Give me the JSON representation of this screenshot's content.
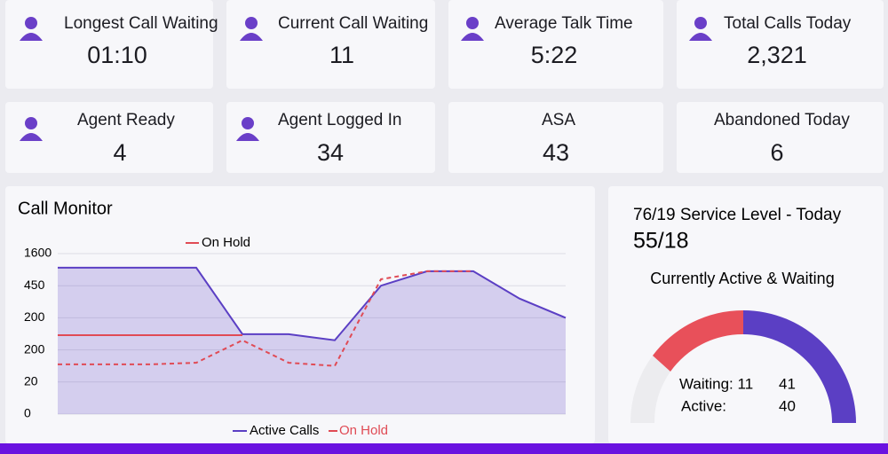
{
  "kpis": [
    {
      "label": "Longest Call Waiting",
      "value": "01:10"
    },
    {
      "label": "Current Call Waiting",
      "value": "11"
    },
    {
      "label": "Average Talk Time",
      "value": "5:22"
    },
    {
      "label": "Total Calls Today",
      "value": "2,321"
    },
    {
      "label": "Agent Ready",
      "value": "4"
    },
    {
      "label": "Agent Logged In",
      "value": "34"
    },
    {
      "label": "ASA",
      "value": "43"
    },
    {
      "label": "Abandoned Today",
      "value": "6"
    }
  ],
  "chart_data": {
    "type": "line",
    "title": "Call Monitor",
    "categories": [
      null,
      null,
      null,
      null,
      null,
      null,
      null,
      null,
      null,
      null,
      null,
      null
    ],
    "series": [
      {
        "name": "Active Calls",
        "color": "#5b3fc4",
        "values": [
          4.56,
          4.56,
          4.56,
          4.56,
          2.49,
          2.49,
          2.3,
          4.0,
          4.45,
          4.45,
          3.6,
          3.0
        ]
      },
      {
        "name": "On Hold",
        "color": "#e04b55",
        "values": [
          1.55,
          1.55,
          1.55,
          1.6,
          2.3,
          1.6,
          1.5,
          4.2,
          4.45,
          4.45,
          null,
          null
        ]
      },
      {
        "name": "On Hold",
        "color": "#e04b55",
        "values": [
          2.46,
          2.46,
          2.46,
          2.46,
          2.46,
          null,
          null,
          null,
          null,
          null,
          null,
          null
        ]
      }
    ],
    "ylim": [
      0,
      5
    ],
    "yticks": [
      0,
      {
        "value": 1,
        "label": "20"
      },
      {
        "value": 2,
        "label": "200"
      },
      {
        "value": 3,
        "label": "200"
      },
      {
        "value": 4,
        "label": "450"
      },
      {
        "value": 5,
        "label": "1600"
      }
    ],
    "grid": true
  },
  "service_panel": {
    "title": "76/19 Service Level - Today",
    "value": "55/18",
    "subtitle": "Currently Active & Waiting",
    "rows": [
      [
        "Waiting: 11",
        "41"
      ],
      [
        "Active:",
        "40"
      ]
    ]
  }
}
